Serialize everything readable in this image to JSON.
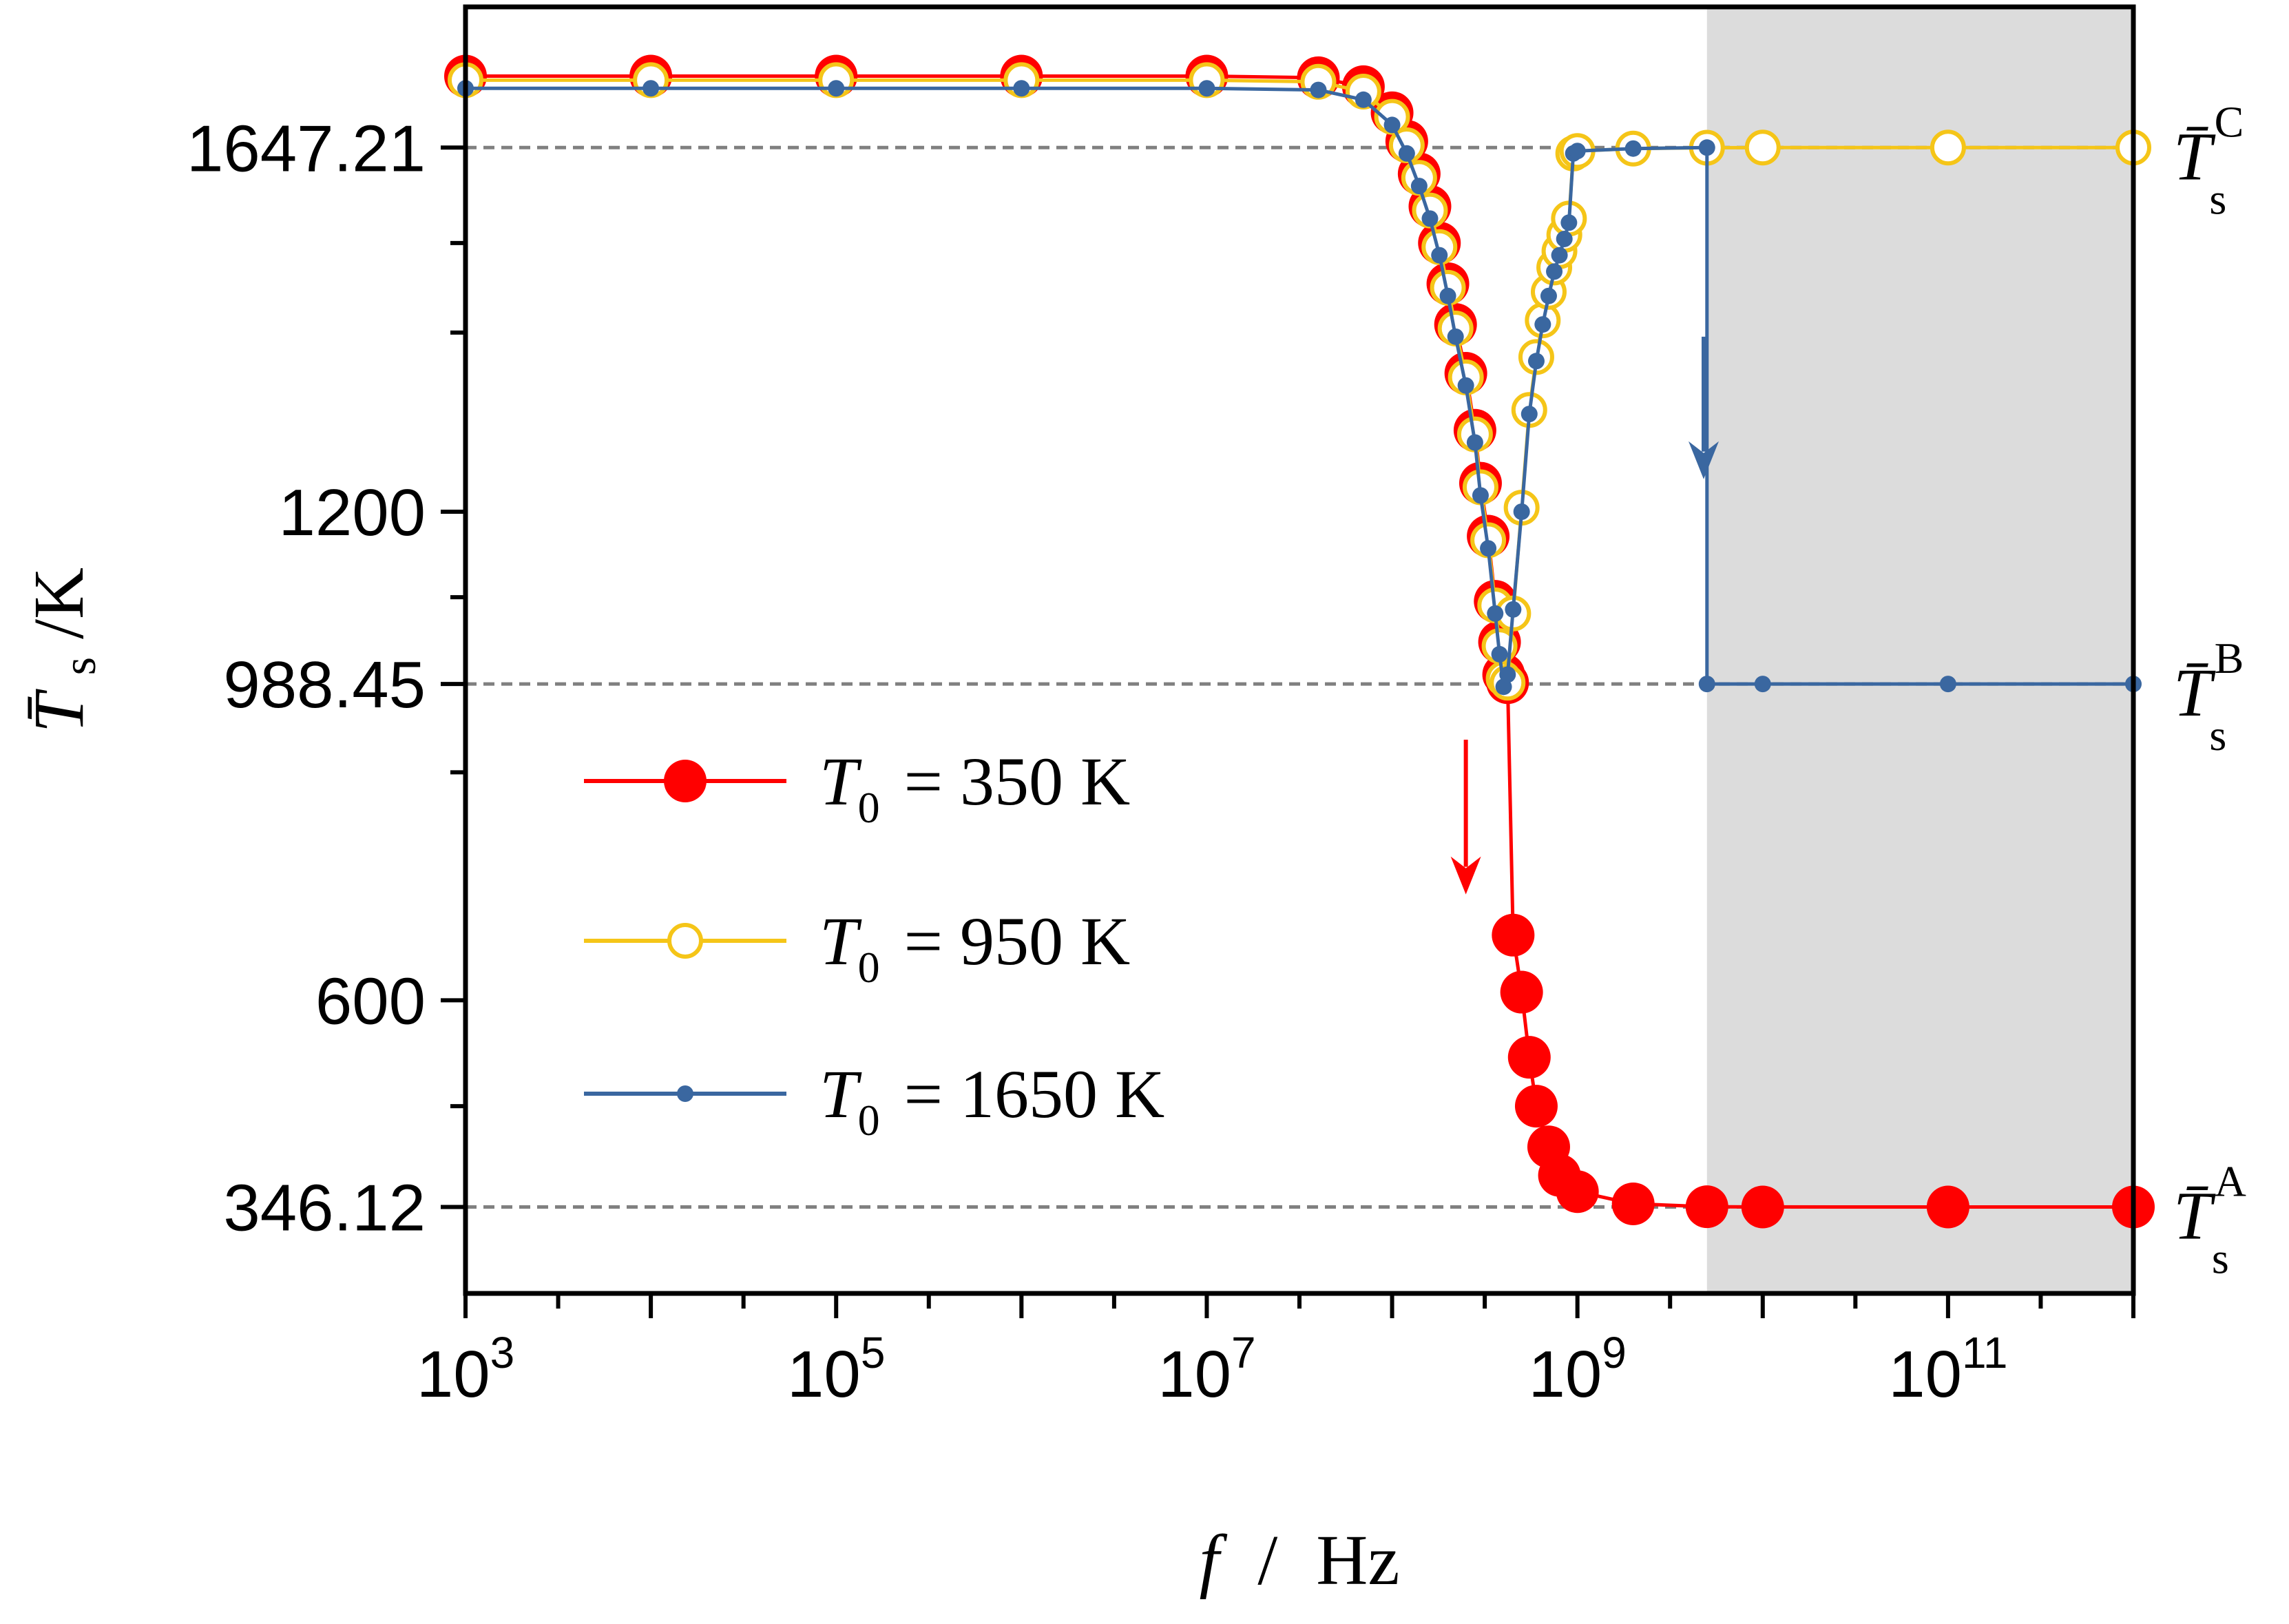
{
  "chart_data": {
    "type": "line",
    "title": "",
    "xlabel": "f / Hz",
    "xlabel_parts": {
      "var": "f",
      "sep": "/",
      "unit": "Hz"
    },
    "ylabel": "T̄s/K",
    "ylabel_parts": {
      "var": "T̄",
      "sub": "s",
      "unit": "/K"
    },
    "xscale": "log",
    "xlim": [
      1000,
      1000000000000
    ],
    "ylim": [
      240,
      1820
    ],
    "x_ticks": [
      {
        "value": 1000,
        "base": "10",
        "exp": "3"
      },
      {
        "value": 100000,
        "base": "10",
        "exp": "5"
      },
      {
        "value": 10000000,
        "base": "10",
        "exp": "7"
      },
      {
        "value": 1000000000,
        "base": "10",
        "exp": "9"
      },
      {
        "value": 100000000000,
        "base": "10",
        "exp": "11"
      }
    ],
    "y_ticks": [
      {
        "value": 346.12,
        "label": "346.12"
      },
      {
        "value": 600,
        "label": "600"
      },
      {
        "value": 988.45,
        "label": "988.45"
      },
      {
        "value": 1200,
        "label": "1200"
      },
      {
        "value": 1647.21,
        "label": "1647.21"
      }
    ],
    "reference_lines": [
      {
        "value": 1647.21,
        "x_end": 1000000000000,
        "label_var": "T̄",
        "label_sub": "s",
        "label_sup": "C"
      },
      {
        "value": 988.45,
        "x_end": 1000000000000,
        "label_var": "T̄",
        "label_sub": "s",
        "label_sup": "B"
      },
      {
        "value": 346.12,
        "x_end": 1000000000000,
        "label_var": "T̄",
        "label_sub": "s",
        "label_sup": "A"
      }
    ],
    "shaded_region": {
      "x_start": 5000000000,
      "x_end": 1000000000000,
      "color": "#dcdcdc"
    },
    "arrows": [
      {
        "series": "T0 = 350 K",
        "x": 250000000,
        "y_from": 920,
        "y_to": 730,
        "color": "#ff0000"
      },
      {
        "series": "T0 = 1650 K",
        "x": 4800000000,
        "y_from": 1415,
        "y_to": 1240,
        "color": "#3a67a0"
      }
    ],
    "legend": {
      "position": "center-left",
      "entries": [
        {
          "var": "T",
          "sub": "0",
          "rest": "= 350 K"
        },
        {
          "var": "T",
          "sub": "0",
          "rest": "= 950 K"
        },
        {
          "var": "T",
          "sub": "0",
          "rest": "= 1650 K"
        }
      ]
    },
    "series": [
      {
        "name": "T0 = 350 K",
        "color": "#ff0000",
        "marker": "filled-circle-large",
        "x": [
          1000,
          10000,
          100000,
          1000000,
          10000000,
          40000000,
          70000000,
          100000000,
          120000000,
          140000000,
          160000000,
          180000000,
          200000000,
          220000000,
          250000000,
          280000000,
          300000000,
          330000000,
          360000000,
          380000000,
          400000000,
          420000000,
          450000000,
          500000000,
          550000000,
          600000000,
          700000000,
          800000000,
          1000000000,
          2000000000,
          5000000000,
          10000000000,
          100000000000,
          1000000000000
        ],
        "values": [
          1735,
          1735,
          1735,
          1735,
          1735,
          1733,
          1722,
          1690,
          1655,
          1615,
          1575,
          1530,
          1480,
          1430,
          1370,
          1300,
          1235,
          1170,
          1090,
          1040,
          1000,
          990,
          680,
          610,
          530,
          470,
          420,
          385,
          365,
          350,
          346.5,
          346.2,
          346.12,
          346.12
        ]
      },
      {
        "name": "T0 = 950 K",
        "color": "#f5c518",
        "marker": "open-circle",
        "x": [
          1000,
          10000,
          100000,
          1000000,
          10000000,
          40000000,
          70000000,
          100000000,
          120000000,
          140000000,
          160000000,
          180000000,
          200000000,
          220000000,
          250000000,
          280000000,
          300000000,
          330000000,
          360000000,
          380000000,
          400000000,
          420000000,
          450000000,
          500000000,
          550000000,
          600000000,
          650000000,
          700000000,
          750000000,
          800000000,
          850000000,
          900000000,
          950000000,
          1000000000,
          2000000000,
          5000000000,
          10000000000,
          100000000000,
          1000000000000
        ],
        "values": [
          1730,
          1730,
          1730,
          1730,
          1730,
          1728,
          1716,
          1685,
          1650,
          1610,
          1570,
          1525,
          1475,
          1425,
          1365,
          1295,
          1230,
          1165,
          1085,
          1035,
          995,
          990,
          1075,
          1205,
          1325,
          1390,
          1435,
          1470,
          1500,
          1520,
          1540,
          1560,
          1640,
          1643,
          1646,
          1647,
          1647.21,
          1647.21,
          1647.21
        ]
      },
      {
        "name": "T0 = 1650 K",
        "color": "#3a67a0",
        "marker": "small-filled-circle",
        "x": [
          1000,
          10000,
          100000,
          1000000,
          10000000,
          40000000,
          70000000,
          100000000,
          120000000,
          140000000,
          160000000,
          180000000,
          200000000,
          220000000,
          250000000,
          280000000,
          300000000,
          330000000,
          360000000,
          380000000,
          400000000,
          420000000,
          450000000,
          500000000,
          550000000,
          600000000,
          650000000,
          700000000,
          750000000,
          800000000,
          850000000,
          900000000,
          950000000,
          1000000000,
          2000000000,
          5000000000,
          5000000000,
          10000000000,
          100000000000,
          1000000000000
        ],
        "values": [
          1720,
          1720,
          1720,
          1720,
          1720,
          1718,
          1706,
          1675,
          1640,
          1600,
          1560,
          1515,
          1465,
          1415,
          1355,
          1285,
          1220,
          1155,
          1075,
          1025,
          985,
          1000,
          1080,
          1200,
          1320,
          1385,
          1430,
          1465,
          1495,
          1515,
          1535,
          1555,
          1640,
          1643,
          1646,
          1647.21,
          988.45,
          988.45,
          988.45,
          988.45
        ]
      }
    ]
  }
}
